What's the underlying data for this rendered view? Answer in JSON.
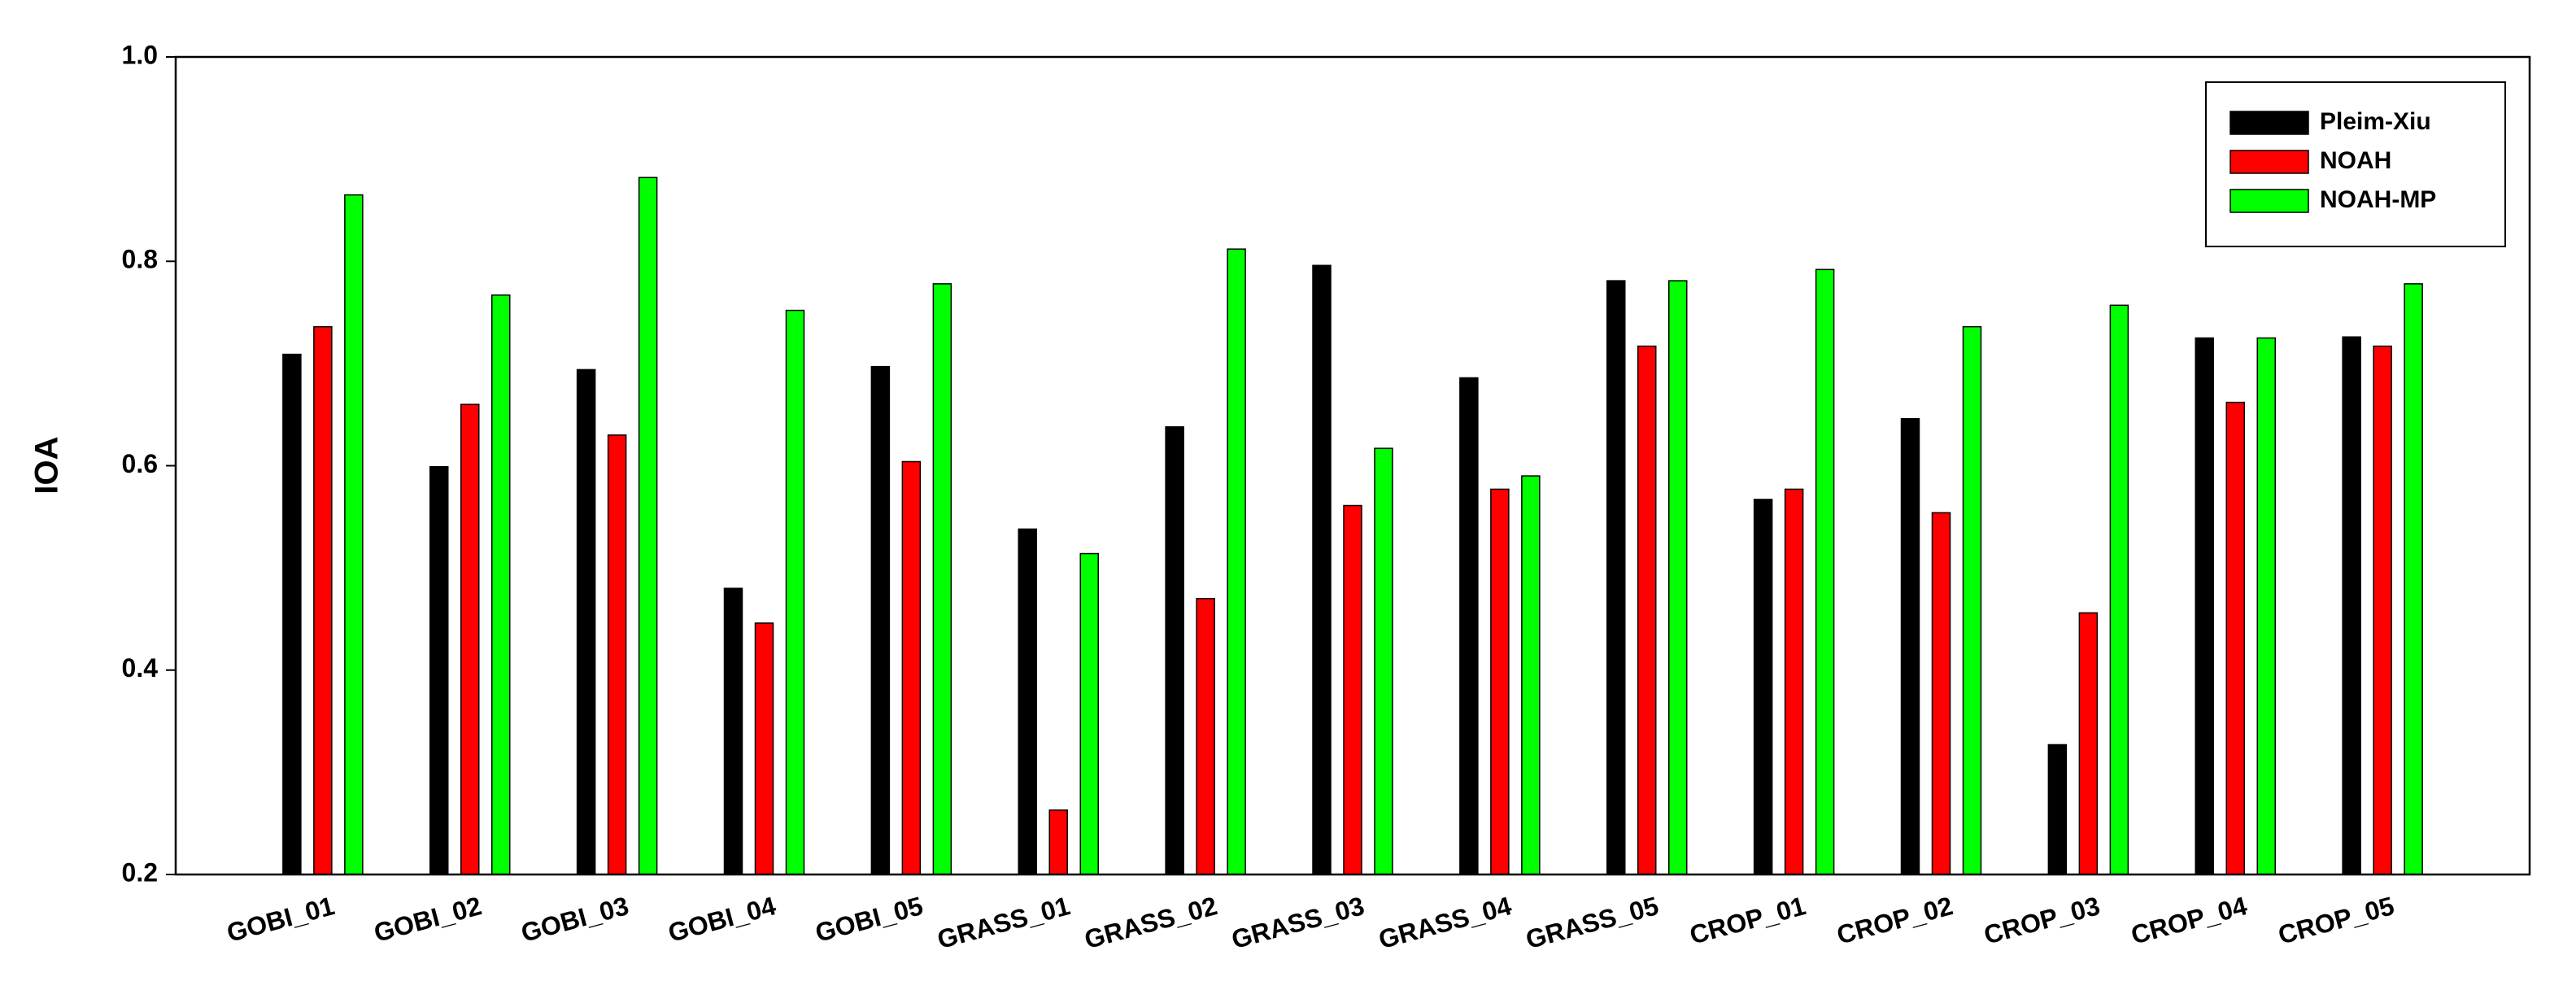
{
  "chart_data": {
    "type": "bar",
    "ylabel": "IOA",
    "categories": [
      "GOBI_01",
      "GOBI_02",
      "GOBI_03",
      "GOBI_04",
      "GOBI_05",
      "GRASS_01",
      "GRASS_02",
      "GRASS_03",
      "GRASS_04",
      "GRASS_05",
      "CROP_01",
      "CROP_02",
      "CROP_03",
      "CROP_04",
      "CROP_05"
    ],
    "series": [
      {
        "name": "Pleim-Xiu",
        "color": "#000000",
        "values": [
          0.709,
          0.599,
          0.694,
          0.48,
          0.697,
          0.538,
          0.638,
          0.796,
          0.686,
          0.781,
          0.567,
          0.646,
          0.327,
          0.725,
          0.726
        ]
      },
      {
        "name": "NOAH",
        "color": "#ff0000",
        "values": [
          0.736,
          0.66,
          0.63,
          0.446,
          0.604,
          0.263,
          0.47,
          0.561,
          0.577,
          0.717,
          0.577,
          0.554,
          0.456,
          0.662,
          0.717
        ]
      },
      {
        "name": "NOAH-MP",
        "color": "#00ff00",
        "values": [
          0.865,
          0.767,
          0.882,
          0.752,
          0.778,
          0.514,
          0.812,
          0.617,
          0.59,
          0.781,
          0.792,
          0.736,
          0.757,
          0.725,
          0.778
        ]
      }
    ],
    "ylim": [
      0.2,
      1
    ],
    "yticks": [
      0.2,
      0.4,
      0.6,
      0.8,
      {
        "value": 1,
        "label": "1.0"
      }
    ],
    "grid": false,
    "legend": "upper right"
  }
}
